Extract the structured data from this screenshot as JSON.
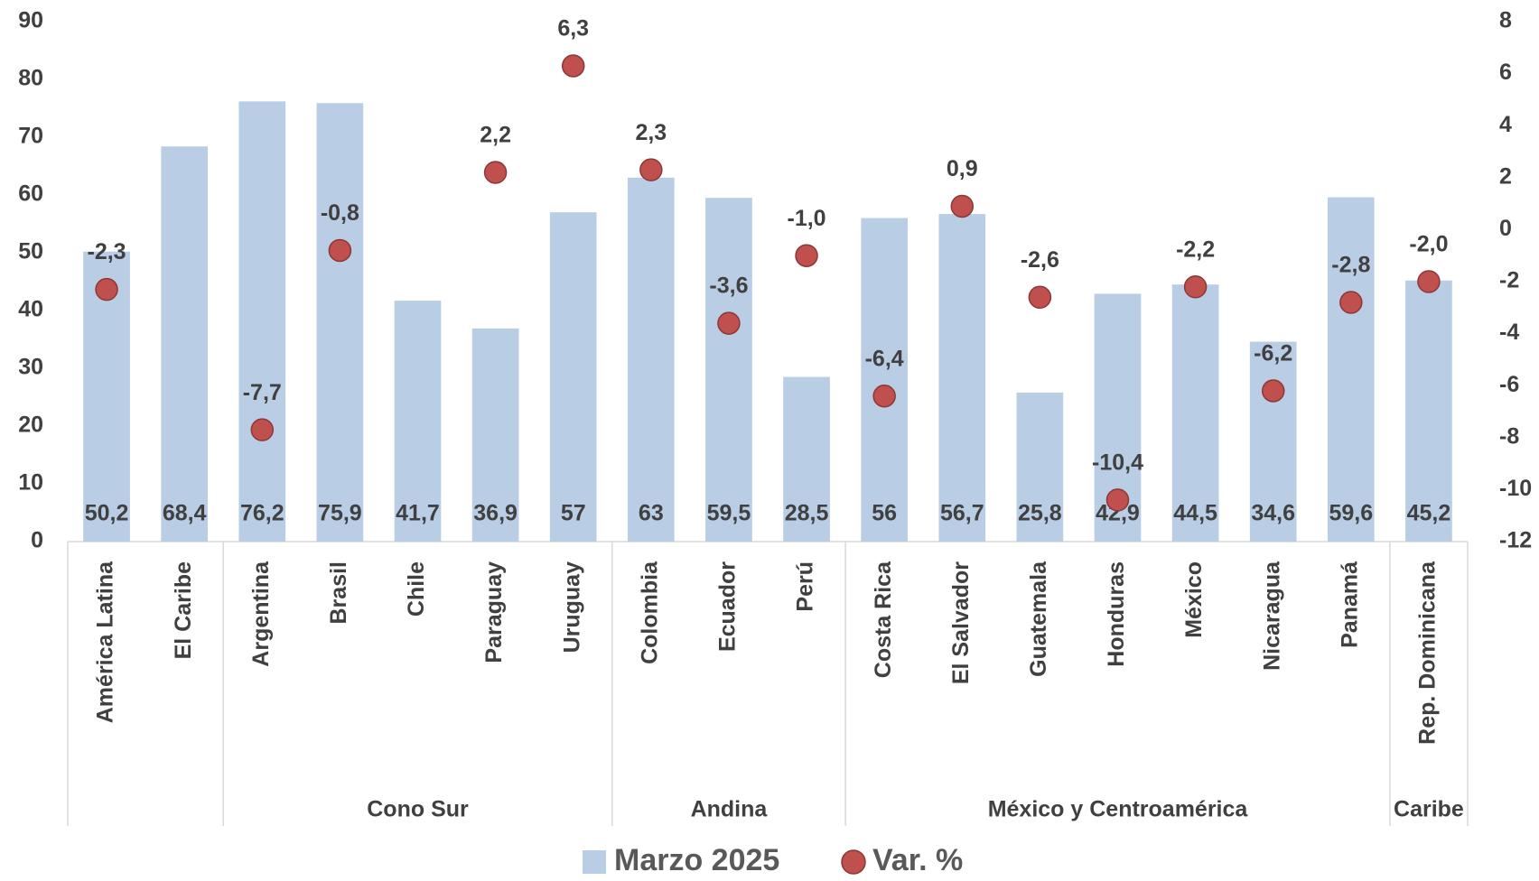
{
  "chart_data": {
    "type": "bar",
    "categories": [
      "América Latina",
      "El Caribe",
      "Argentina",
      "Brasil",
      "Chile",
      "Paraguay",
      "Uruguay",
      "Colombia",
      "Ecuador",
      "Perú",
      "Costa Rica",
      "El Salvador",
      "Guatemala",
      "Honduras",
      "México",
      "Nicaragua",
      "Panamá",
      "Rep. Dominicana"
    ],
    "groups": [
      {
        "name": null,
        "count": 2
      },
      {
        "name": "Cono Sur",
        "count": 5
      },
      {
        "name": "Andina",
        "count": 3
      },
      {
        "name": "México y Centroamérica",
        "count": 7
      },
      {
        "name": "Caribe",
        "count": 1
      }
    ],
    "series": [
      {
        "name": "Marzo 2025",
        "color": "#b9cde5",
        "type": "bar",
        "values": [
          50.2,
          68.4,
          76.2,
          75.9,
          41.7,
          36.9,
          57,
          63,
          59.5,
          28.5,
          56,
          56.7,
          25.8,
          42.9,
          44.5,
          34.6,
          59.6,
          45.2
        ],
        "value_labels": [
          "50,2",
          "68,4",
          "76,2",
          "75,9",
          "41,7",
          "36,9",
          "57",
          "63",
          "59,5",
          "28,5",
          "56",
          "56,7",
          "25,8",
          "42,9",
          "44,5",
          "34,6",
          "59,6",
          "45,2"
        ]
      },
      {
        "name": "Var. %",
        "color": "#c0504d",
        "type": "scatter",
        "axis": "y2",
        "values": [
          -2.3,
          null,
          -7.7,
          -0.8,
          null,
          2.2,
          6.3,
          2.3,
          -3.6,
          -1.0,
          -6.4,
          0.9,
          -2.6,
          -10.4,
          -2.2,
          -6.2,
          -2.8,
          -2.0
        ],
        "value_labels": [
          "-2,3",
          null,
          "-7,7",
          "-0,8",
          null,
          "2,2",
          "6,3",
          "2,3",
          "-3,6",
          "-1,0",
          "-6,4",
          "0,9",
          "-2,6",
          "-10,4",
          "-2,2",
          "-6,2",
          "-2,8",
          "-2,0"
        ]
      }
    ],
    "ylim": [
      0,
      90
    ],
    "yticks": [
      0,
      10,
      20,
      30,
      40,
      50,
      60,
      70,
      80,
      90
    ],
    "y2lim": [
      -12,
      8
    ],
    "y2ticks": [
      -12,
      -10,
      -8,
      -6,
      -4,
      -2,
      0,
      2,
      4,
      6,
      8
    ],
    "legend": "bottom",
    "grid": false
  }
}
